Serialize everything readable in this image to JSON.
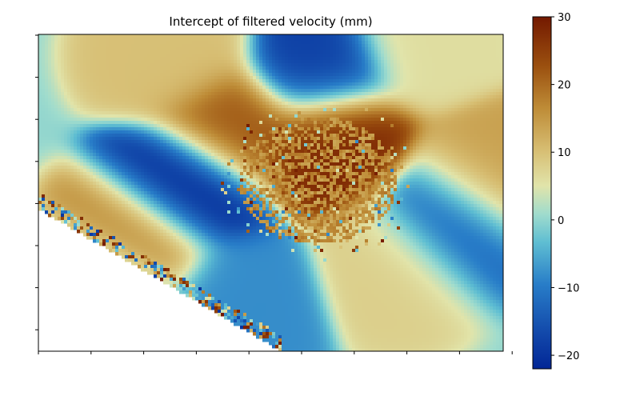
{
  "chart_data": {
    "type": "heatmap",
    "title": "Intercept of filtered velocity (mm)",
    "xlabel": "",
    "ylabel": "",
    "x_tick_labels_visible": false,
    "y_tick_labels_visible": false,
    "grid": false,
    "colormap": "roma_r (blue → cyan → pale yellow → tan → dark brown)",
    "colorbar": {
      "position": "right",
      "range": [
        -22,
        30
      ],
      "ticks": [
        -20,
        -10,
        0,
        10,
        20,
        30
      ],
      "tick_labels": [
        "−20",
        "−10",
        "0",
        "10",
        "20",
        "30"
      ]
    },
    "nodata_color": "#ffffff",
    "features": [
      {
        "kind": "blob",
        "value": -22,
        "x": 0.32,
        "y": 0.49
      },
      {
        "kind": "blob",
        "value": -18,
        "x": 0.6,
        "y": 0.11
      },
      {
        "kind": "blob",
        "value": -14,
        "x": 0.88,
        "y": 0.59
      },
      {
        "kind": "blob",
        "value": -12,
        "x": 0.14,
        "y": 0.82
      },
      {
        "kind": "blob",
        "value": -8,
        "x": 0.43,
        "y": 0.84
      },
      {
        "kind": "blob",
        "value": 28,
        "x": 0.63,
        "y": 0.33
      },
      {
        "kind": "blob",
        "value": 22,
        "x": 0.42,
        "y": 0.3
      },
      {
        "kind": "blob",
        "value": 18,
        "x": 0.22,
        "y": 0.65
      },
      {
        "kind": "blob",
        "value": 14,
        "x": 0.96,
        "y": 0.45
      },
      {
        "kind": "blob",
        "value": 10,
        "x": 0.3,
        "y": 0.06
      },
      {
        "kind": "blob",
        "value": 8,
        "x": 0.77,
        "y": 0.72
      },
      {
        "kind": "blob",
        "value": 6,
        "x": 0.82,
        "y": 0.02
      }
    ]
  }
}
